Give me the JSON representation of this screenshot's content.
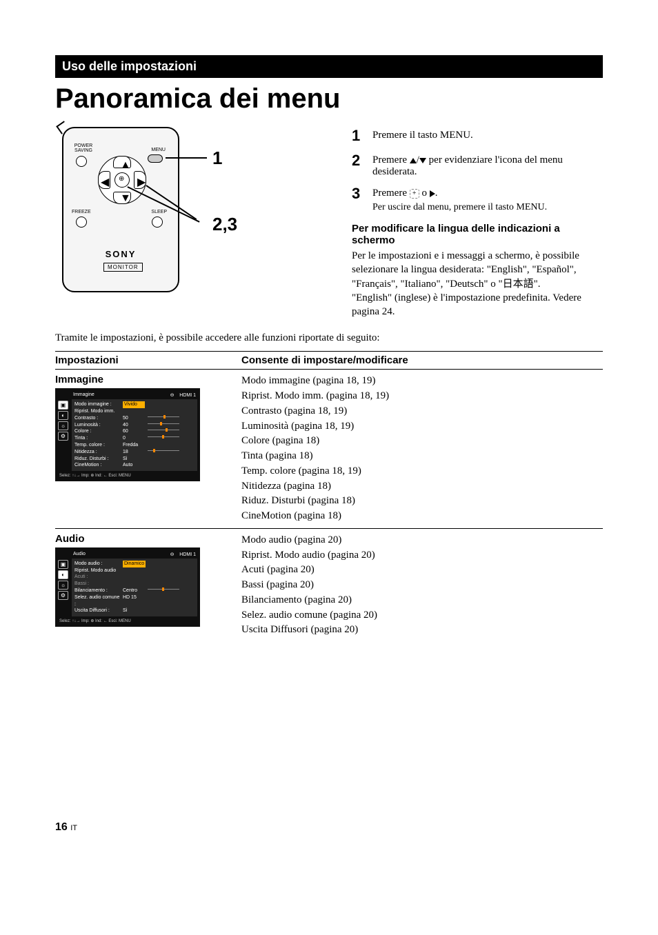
{
  "banner": "Uso delle impostazioni",
  "title": "Panoramica dei menu",
  "remote": {
    "labels": {
      "power_saving": "POWER\nSAVING",
      "menu": "MENU",
      "freeze": "FREEZE",
      "sleep": "SLEEP",
      "logo": "SONY",
      "sub": "MONITOR"
    },
    "callouts": {
      "one": "1",
      "twothree": "2,3"
    }
  },
  "steps": [
    {
      "num": "1",
      "text": "Premere il tasto MENU."
    },
    {
      "num": "2",
      "text": "Premere ↑/↓ per evidenziare l'icona del menu desiderata."
    },
    {
      "num": "3",
      "text": "Premere ⊕ o →.",
      "sub": "Per uscire dal menu, premere il tasto MENU."
    }
  ],
  "lang_section": {
    "head": "Per modificare la lingua delle indicazioni a schermo",
    "p1": "Per le impostazioni e i messaggi a schermo, è possibile selezionare la lingua desiderata: \"English\", \"Español\", \"Français\", \"Italiano\", \"Deutsch\" o \"日本語\".",
    "p2": "\"English\" (inglese) è l'impostazione predefinita. Vedere pagina 24."
  },
  "intro": "Tramite le impostazioni, è possibile accedere alle funzioni riportate di seguito:",
  "table": {
    "head_left": "Impostazioni",
    "head_right": "Consente di impostare/modificare",
    "rows": [
      {
        "title": "Immagine",
        "osd": {
          "head_left": "Immagine",
          "head_mid": "⊖",
          "head_right": "HDMI 1",
          "lines": [
            {
              "k": "Modo immagine :",
              "v": "Vivido",
              "hl": true
            },
            {
              "k": "Riprist. Modo imm."
            },
            {
              "k": "Contrasto :",
              "v": "50",
              "slider": 0.55
            },
            {
              "k": "Luminosità :",
              "v": "40",
              "slider": 0.42
            },
            {
              "k": "Colore :",
              "v": "60",
              "slider": 0.62
            },
            {
              "k": "Tinta :",
              "v": "0",
              "slider": 0.5
            },
            {
              "k": "Temp. colore :",
              "v": "Fredda"
            },
            {
              "k": "Nitidezza :",
              "v": "18",
              "slider": 0.2
            },
            {
              "k": "Riduz. Disturbi :",
              "v": "Sì"
            },
            {
              "k": "CineMotion :",
              "v": "Auto"
            }
          ],
          "foot": "Selez: ↑↓→   Imp: ⊕   Ind: ←   Esci: MENU"
        },
        "desc": [
          "Modo immagine (pagina 18, 19)",
          "Riprist. Modo imm. (pagina 18, 19)",
          "Contrasto (pagina 18, 19)",
          "Luminosità (pagina 18, 19)",
          "Colore (pagina 18)",
          "Tinta (pagina 18)",
          "Temp. colore (pagina 18, 19)",
          "Nitidezza (pagina 18)",
          "Riduz. Disturbi (pagina 18)",
          "CineMotion (pagina 18)"
        ]
      },
      {
        "title": "Audio",
        "osd": {
          "head_left": "Audio",
          "head_mid": "⊖",
          "head_right": "HDMI 1",
          "lines": [
            {
              "k": "Modo audio :",
              "v": "Dinamico",
              "hl": true
            },
            {
              "k": "Riprist. Modo audio"
            },
            {
              "k": "Acuti :",
              "grey": true
            },
            {
              "k": "Bassi :",
              "grey": true
            },
            {
              "k": "Bilanciamento :",
              "v": "Centro",
              "slider": 0.5
            },
            {
              "k": "Selez. audio comune :",
              "v": "HD 15"
            },
            {
              "k": "Uscita Diffusori :",
              "v": "Sì"
            }
          ],
          "foot": "Selez: ↑↓→   Imp: ⊕   Ind: ←   Esci: MENU"
        },
        "desc": [
          "Modo audio (pagina 20)",
          "Riprist. Modo audio (pagina 20)",
          "Acuti (pagina 20)",
          "Bassi (pagina 20)",
          "Bilanciamento (pagina 20)",
          "Selez. audio comune (pagina 20)",
          "Uscita Diffusori (pagina 20)"
        ]
      }
    ]
  },
  "page": {
    "num": "16",
    "lang": "IT"
  },
  "colors": {
    "bg": "#ffffff",
    "text": "#000000",
    "osd_bg": "#0f0f0f",
    "highlight": "#ffb000"
  }
}
